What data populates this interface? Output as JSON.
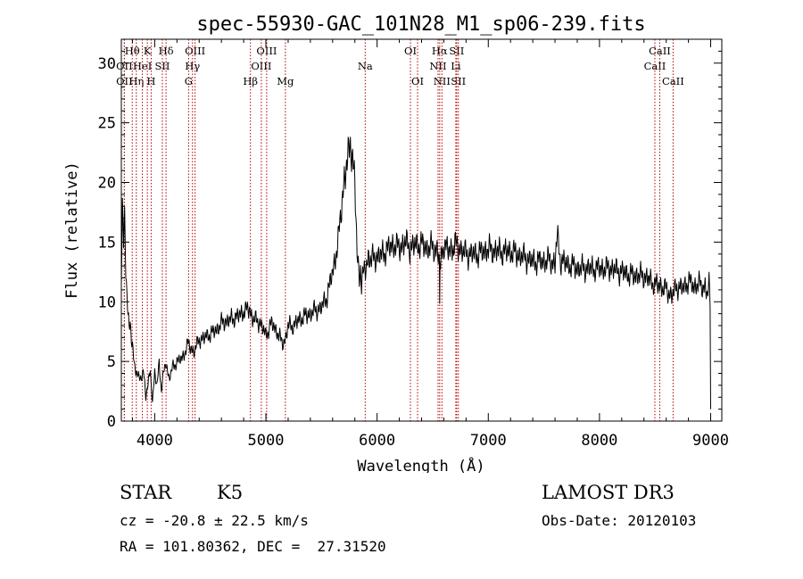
{
  "chart_data": {
    "type": "line",
    "title": "spec-55930-GAC_101N28_M1_sp06-239.fits",
    "xlabel": "Wavelength (Å)",
    "ylabel": "Flux (relative)",
    "xlim": [
      3700,
      9100
    ],
    "ylim": [
      0,
      32
    ],
    "xticks": [
      4000,
      5000,
      6000,
      7000,
      8000,
      9000
    ],
    "yticks": [
      0,
      5,
      10,
      15,
      20,
      25,
      30
    ],
    "grid": false,
    "series": [
      {
        "name": "spectrum",
        "color": "#000000",
        "x": [
          3700,
          3710,
          3720,
          3730,
          3740,
          3750,
          3760,
          3770,
          3780,
          3790,
          3800,
          3820,
          3840,
          3860,
          3880,
          3900,
          3920,
          3940,
          3960,
          3980,
          4000,
          4020,
          4040,
          4060,
          4080,
          4100,
          4130,
          4160,
          4200,
          4250,
          4300,
          4350,
          4400,
          4450,
          4500,
          4550,
          4600,
          4650,
          4700,
          4750,
          4800,
          4850,
          4880,
          4900,
          4950,
          5000,
          5050,
          5100,
          5150,
          5180,
          5200,
          5250,
          5300,
          5350,
          5400,
          5450,
          5500,
          5550,
          5600,
          5620,
          5650,
          5680,
          5700,
          5720,
          5740,
          5760,
          5780,
          5800,
          5810,
          5820,
          5830,
          5840,
          5850,
          5860,
          5880,
          5900,
          5920,
          5950,
          6000,
          6050,
          6100,
          6150,
          6200,
          6250,
          6300,
          6350,
          6400,
          6450,
          6500,
          6540,
          6560,
          6563,
          6566,
          6580,
          6600,
          6650,
          6700,
          6750,
          6800,
          6900,
          7000,
          7100,
          7200,
          7300,
          7400,
          7500,
          7550,
          7600,
          7610,
          7620,
          7650,
          7700,
          7800,
          7900,
          8000,
          8100,
          8200,
          8300,
          8400,
          8450,
          8500,
          8550,
          8600,
          8650,
          8700,
          8750,
          8800,
          8850,
          8900,
          8950,
          8970,
          8985,
          8995,
          9000
        ],
        "y": [
          12,
          18,
          15,
          17,
          13,
          11,
          9,
          7.5,
          8,
          7,
          6.5,
          4.5,
          4,
          3.5,
          3.8,
          4.2,
          2,
          3,
          4.5,
          1.5,
          4,
          3,
          5,
          2.5,
          4,
          5,
          3.5,
          4.5,
          5,
          5.3,
          6.5,
          5.8,
          6.8,
          7,
          7.3,
          7.6,
          8.2,
          8.4,
          8.6,
          8.8,
          9.2,
          9.4,
          8.6,
          8.5,
          8.2,
          7.2,
          8.2,
          7.5,
          6.5,
          7,
          8,
          8,
          8.5,
          8.8,
          9,
          9.3,
          9.5,
          10.5,
          12.5,
          13.5,
          15,
          18,
          20,
          21,
          22,
          23.5,
          22,
          20,
          17,
          14,
          13,
          12,
          13,
          11.5,
          12.5,
          12.8,
          13.8,
          13.5,
          13.8,
          14,
          14.5,
          14.8,
          14.5,
          15,
          14.5,
          14.8,
          14.8,
          14.5,
          14.6,
          14.3,
          13.5,
          10.5,
          13.5,
          14.2,
          14.8,
          14.2,
          14.8,
          14.4,
          14,
          14,
          14.4,
          14.2,
          14.2,
          13.8,
          13.4,
          13.4,
          13.5,
          13.2,
          14.5,
          15.5,
          13.5,
          13.2,
          12.8,
          12.8,
          12.8,
          12.8,
          12.5,
          12.2,
          12.2,
          11.8,
          11.5,
          11.3,
          11,
          10.5,
          11.3,
          11.1,
          11.7,
          11.3,
          11.5,
          11.2,
          10.5,
          11.5,
          10,
          1
        ]
      }
    ],
    "lines": [
      {
        "label": "Hθ",
        "wl": 3798,
        "row": 0
      },
      {
        "label": "OII",
        "wl": 3727,
        "row": 1
      },
      {
        "label": "OII",
        "wl": 3727,
        "row": 2
      },
      {
        "label": "Hη",
        "wl": 3835,
        "row": 2
      },
      {
        "label": "HeI",
        "wl": 3889,
        "row": 1
      },
      {
        "label": "K",
        "wl": 3934,
        "row": 0
      },
      {
        "label": "SII",
        "wl": 4069,
        "row": 1
      },
      {
        "label": "H",
        "wl": 3968,
        "row": 2
      },
      {
        "label": "Hδ",
        "wl": 4102,
        "row": 0
      },
      {
        "label": "OIII",
        "wl": 4363,
        "row": 0
      },
      {
        "label": "Hγ",
        "wl": 4340,
        "row": 1
      },
      {
        "label": "G",
        "wl": 4305,
        "row": 2
      },
      {
        "label": "Hβ",
        "wl": 4861,
        "row": 2
      },
      {
        "label": "OIII",
        "wl": 4959,
        "row": 1
      },
      {
        "label": "OIII",
        "wl": 5007,
        "row": 0
      },
      {
        "label": "Mg",
        "wl": 5175,
        "row": 2
      },
      {
        "label": "Na",
        "wl": 5893,
        "row": 1
      },
      {
        "label": "OI",
        "wl": 6300,
        "row": 0
      },
      {
        "label": "OI",
        "wl": 6364,
        "row": 2
      },
      {
        "label": "NII",
        "wl": 6548,
        "row": 1
      },
      {
        "label": "Hα",
        "wl": 6563,
        "row": 0
      },
      {
        "label": "NII",
        "wl": 6583,
        "row": 2
      },
      {
        "label": "SII",
        "wl": 6716,
        "row": 0
      },
      {
        "label": "SII",
        "wl": 6731,
        "row": 2
      },
      {
        "label": "Li",
        "wl": 6708,
        "row": 1
      },
      {
        "label": "CaII",
        "wl": 8498,
        "row": 1
      },
      {
        "label": "CaII",
        "wl": 8542,
        "row": 0
      },
      {
        "label": "CaII",
        "wl": 8662,
        "row": 2
      }
    ]
  },
  "info": {
    "class": "STAR",
    "subclass": "K5",
    "survey": "LAMOST DR3",
    "cz": "cz = -20.8 ± 22.5 km/s",
    "obs_date": "Obs-Date: 20120103",
    "radec": "RA = 101.80362, DEC =  27.31520"
  }
}
